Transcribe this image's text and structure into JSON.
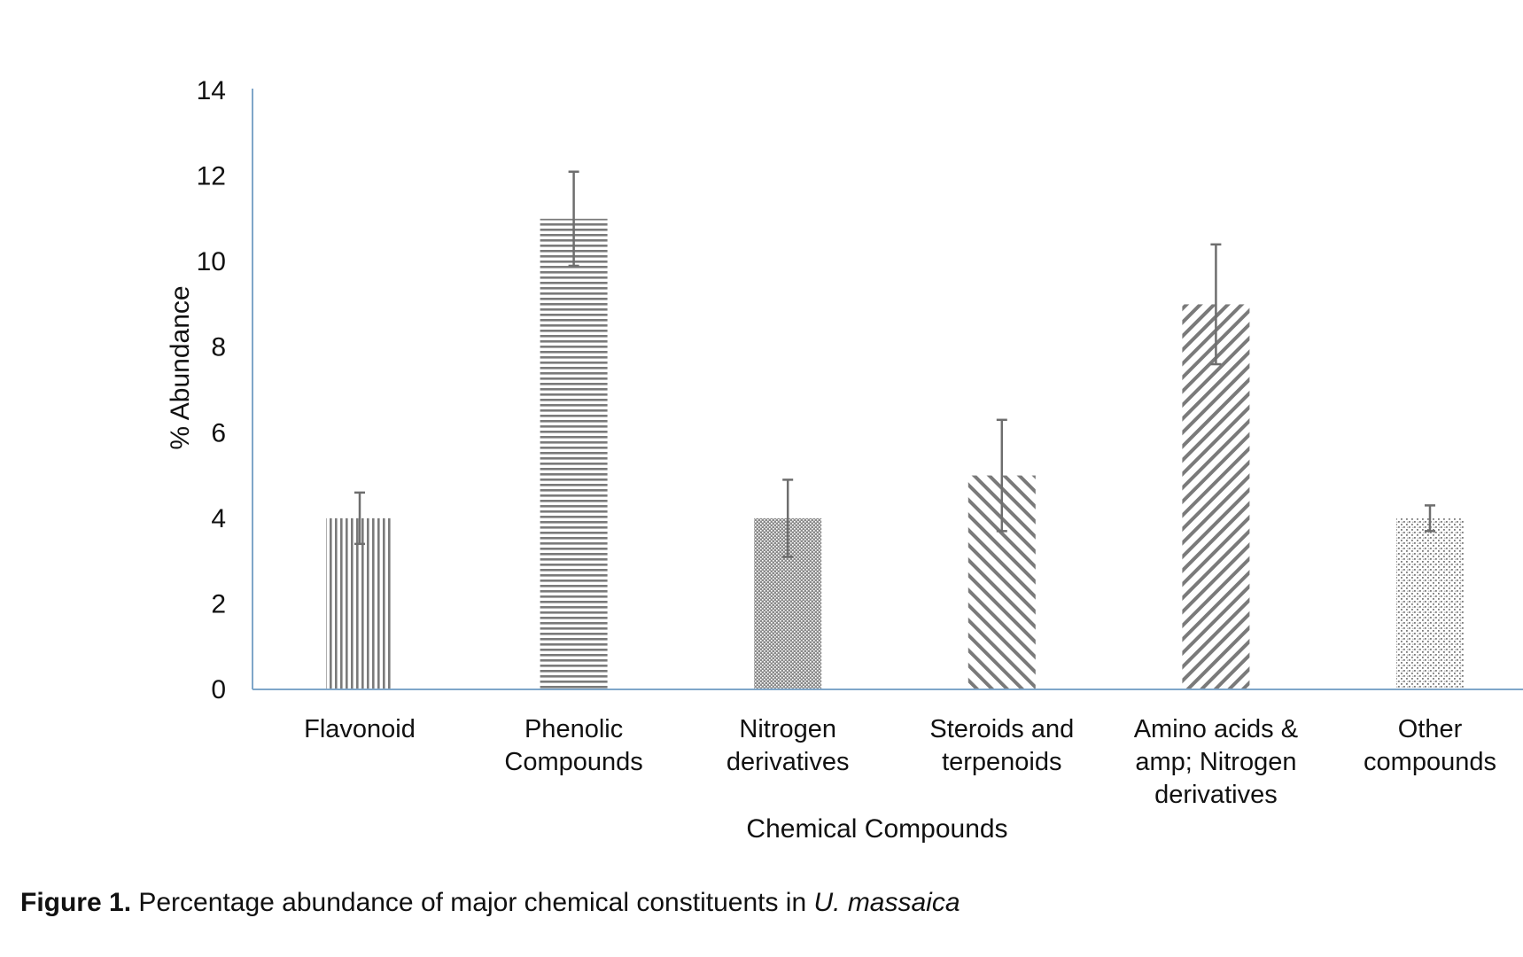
{
  "chart_data": {
    "type": "bar",
    "categories": [
      [
        "Flavonoid"
      ],
      [
        "Phenolic",
        "Compounds"
      ],
      [
        "Nitrogen",
        "derivatives"
      ],
      [
        "Steroids and",
        "terpenoids"
      ],
      [
        "Amino acids &",
        "amp; Nitrogen",
        "derivatives"
      ],
      [
        "Other",
        "compounds"
      ]
    ],
    "values": [
      4,
      11,
      4,
      5,
      9,
      4
    ],
    "error_high": [
      4.6,
      12.1,
      4.9,
      6.3,
      10.4,
      4.3
    ],
    "error_low": [
      3.4,
      9.9,
      3.1,
      3.7,
      7.6,
      3.7
    ],
    "patterns": [
      "vertical-lines",
      "horizontal-lines",
      "dense-dots",
      "diagonal-back",
      "diagonal-forward",
      "sparse-dots"
    ],
    "xlabel": "Chemical Compounds",
    "ylabel": "% Abundance",
    "ylim": [
      0,
      14
    ],
    "yticks": [
      "0",
      "2",
      "4",
      "6",
      "8",
      "10",
      "12",
      "14"
    ],
    "grid": false,
    "axis_color": "#7fa6c9",
    "bar_color": "#7a7a7a",
    "error_color": "#6e6e6e"
  },
  "caption": {
    "label": "Figure 1.",
    "text": " Percentage abundance of major chemical constituents in ",
    "species": "U. massaica"
  }
}
